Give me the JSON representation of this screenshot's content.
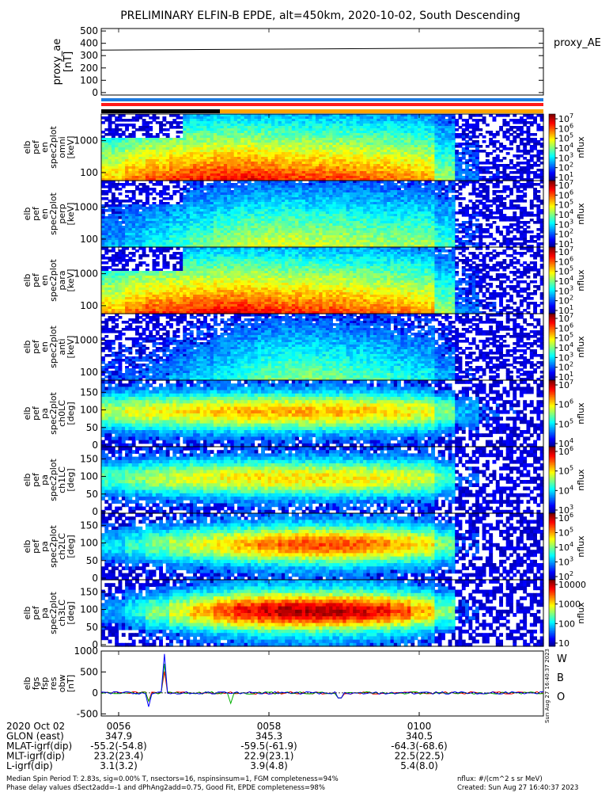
{
  "chart_data": {
    "type": "heatmap",
    "title": "PRELIMINARY ELFIN-B EPDE, alt=450km, 2020-10-02, South Descending",
    "proxy_ae": {
      "ylabel_lines": [
        "proxy_ae",
        "[nT]"
      ],
      "yticks": [
        "500",
        "400",
        "300",
        "200",
        "100",
        "0"
      ],
      "ylim": [
        -20,
        520
      ],
      "value": 358,
      "legend": "proxy_AE"
    },
    "colorbar_unit": "nflux",
    "panels": [
      {
        "id": "omni",
        "label_lines": [
          "elb",
          "pef",
          "en",
          "spec2plot",
          "omni",
          "[keV]"
        ],
        "yticks": [
          "1000",
          "100"
        ],
        "cbar_ticks": [
          "10^7",
          "10^6",
          "10^5",
          "10^4",
          "10^3",
          "10^2",
          "10^1"
        ],
        "cbar_sub": "ni",
        "profile": [
          0.7,
          0.78,
          0.82,
          0.85,
          0.88,
          0.9,
          0.9,
          0.88,
          0.86,
          0.85,
          0.84,
          0.82,
          0.8,
          0.78,
          0.75,
          0.55,
          0.25,
          0.15,
          0.1,
          0.08
        ]
      },
      {
        "id": "perp",
        "label_lines": [
          "elb",
          "pef",
          "en",
          "spec2plot",
          "perp",
          "[keV]"
        ],
        "yticks": [
          "1000",
          "100"
        ],
        "cbar_ticks": [
          "10^7",
          "10^6",
          "10^5",
          "10^4",
          "10^3",
          "10^2",
          "10^1"
        ],
        "cbar_sub": "",
        "profile": [
          0.3,
          0.35,
          0.4,
          0.45,
          0.5,
          0.55,
          0.6,
          0.62,
          0.62,
          0.6,
          0.6,
          0.58,
          0.56,
          0.55,
          0.55,
          0.45,
          0.2,
          0.12,
          0.08,
          0.05
        ]
      },
      {
        "id": "para",
        "label_lines": [
          "elb",
          "pef",
          "en",
          "spec2plot",
          "para",
          "[keV]"
        ],
        "yticks": [
          "1000",
          "100"
        ],
        "cbar_ticks": [
          "10^7",
          "10^6",
          "10^5",
          "10^4",
          "10^3",
          "10^2",
          "10^1"
        ],
        "cbar_sub": "",
        "profile": [
          0.72,
          0.8,
          0.84,
          0.86,
          0.88,
          0.9,
          0.9,
          0.88,
          0.86,
          0.85,
          0.84,
          0.82,
          0.8,
          0.78,
          0.74,
          0.55,
          0.25,
          0.15,
          0.1,
          0.08
        ]
      },
      {
        "id": "anti",
        "label_lines": [
          "elb",
          "pef",
          "en",
          "spec2plot",
          "anti",
          "[keV]"
        ],
        "yticks": [
          "1000",
          "100"
        ],
        "cbar_ticks": [
          "10^7",
          "10^6",
          "10^5",
          "10^4",
          "10^3",
          "10^2",
          "10^1"
        ],
        "cbar_sub": "",
        "profile": [
          0.2,
          0.22,
          0.25,
          0.3,
          0.35,
          0.4,
          0.45,
          0.5,
          0.52,
          0.52,
          0.5,
          0.48,
          0.46,
          0.42,
          0.4,
          0.3,
          0.15,
          0.08,
          0.05,
          0.03
        ]
      },
      {
        "id": "ch0LC",
        "label_lines": [
          "elb",
          "pef",
          "pa",
          "spec2plot",
          "ch0LC",
          "[deg]"
        ],
        "yticks": [
          "150",
          "100",
          "50",
          "0"
        ],
        "cbar_ticks": [
          "10^7",
          "10^6",
          "10^5",
          "10^4"
        ],
        "cbar_sub": "",
        "profile": [
          0.55,
          0.6,
          0.62,
          0.64,
          0.66,
          0.68,
          0.7,
          0.7,
          0.7,
          0.7,
          0.7,
          0.68,
          0.66,
          0.65,
          0.62,
          0.5,
          0.3,
          0.2,
          0.15,
          0.1
        ]
      },
      {
        "id": "ch1LC",
        "label_lines": [
          "elb",
          "pef",
          "pa",
          "spec2plot",
          "ch1LC",
          "[deg]"
        ],
        "yticks": [
          "150",
          "100",
          "50",
          "0"
        ],
        "cbar_ticks": [
          "10^6",
          "10^5",
          "10^4",
          "10^3"
        ],
        "cbar_sub": "",
        "profile": [
          0.45,
          0.5,
          0.55,
          0.58,
          0.6,
          0.62,
          0.64,
          0.65,
          0.65,
          0.65,
          0.65,
          0.64,
          0.62,
          0.6,
          0.58,
          0.45,
          0.2,
          0.1,
          0.08,
          0.05
        ]
      },
      {
        "id": "ch2LC",
        "label_lines": [
          "elb",
          "pef",
          "pa",
          "spec2plot",
          "ch2LC",
          "[deg]"
        ],
        "yticks": [
          "150",
          "100",
          "50",
          "0"
        ],
        "cbar_ticks": [
          "10^6",
          "10^5",
          "10^4",
          "10^3",
          "10^2"
        ],
        "cbar_sub": "",
        "profile": [
          0.35,
          0.42,
          0.5,
          0.55,
          0.6,
          0.65,
          0.7,
          0.75,
          0.78,
          0.8,
          0.8,
          0.78,
          0.75,
          0.7,
          0.65,
          0.5,
          0.2,
          0.1,
          0.06,
          0.04
        ]
      },
      {
        "id": "ch3LC",
        "label_lines": [
          "elb",
          "pef",
          "pa",
          "spec2plot",
          "ch3LC",
          "[deg]"
        ],
        "yticks": [
          "150",
          "100",
          "50",
          "0"
        ],
        "cbar_ticks": [
          "10000",
          "1000",
          "100",
          "10"
        ],
        "cbar_sub": "",
        "profile": [
          0.3,
          0.4,
          0.5,
          0.6,
          0.7,
          0.8,
          0.88,
          0.92,
          0.95,
          0.95,
          0.94,
          0.92,
          0.88,
          0.8,
          0.7,
          0.5,
          0.2,
          0.1,
          0.06,
          0.04
        ]
      }
    ],
    "fgm": {
      "label_lines": [
        "elb",
        "fgs",
        "fsp",
        "res",
        "obw",
        "[nT]"
      ],
      "yticks": [
        "1000",
        "500",
        "0",
        "-500"
      ],
      "ylim": [
        -550,
        1000
      ],
      "legend": [
        "W",
        "B",
        "O"
      ],
      "spike_peak": 930,
      "spike_min": -330
    },
    "side_note": "Sun Aug 27 16:40:37 2023",
    "xaxis": {
      "ticks": [
        "0056",
        "0058",
        "0100"
      ],
      "rows": [
        {
          "label": "2020 Oct 02",
          "values": [
            "0056",
            "0058",
            "0100"
          ]
        },
        {
          "label": "GLON (east)",
          "values": [
            "347.9",
            "345.3",
            "340.5"
          ]
        },
        {
          "label": "MLAT-igrf(dip)",
          "values": [
            "-55.2(-54.8)",
            "-59.5(-61.9)",
            "-64.3(-68.6)"
          ]
        },
        {
          "label": "MLT-igrf(dip)",
          "values": [
            "23.2(23.4)",
            "22.9(23.1)",
            "22.5(22.5)"
          ]
        },
        {
          "label": "L-igrf(dip)",
          "values": [
            "3.1(3.2)",
            "3.9(4.8)",
            "5.4(8.0)"
          ]
        }
      ]
    },
    "footer": {
      "line1": "Median Spin Period T: 2.83s, sig=0.00% T, nsectors=16, nspinsinsum=1, FGM completeness=94%",
      "line2": "Phase delay values dSect2add=-1 and dPhAng2add=0.75, Good Fit, EPDE completeness=98%",
      "right1": "nflux: #/(cm^2 s sr MeV)",
      "right2": "Created: Sun Aug 27 16:40:37 2023"
    },
    "colors": {
      "blue": "#1e7be0",
      "red": "#ff1a1a",
      "orange": "#ffa500",
      "black": "#000000"
    }
  }
}
